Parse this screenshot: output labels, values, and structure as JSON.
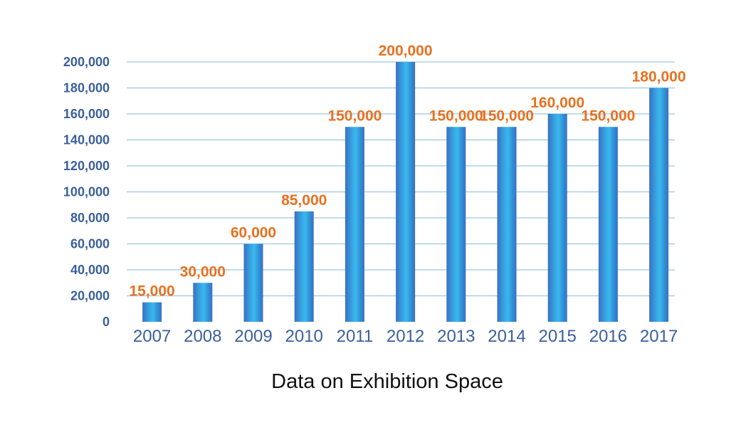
{
  "chart_data": {
    "type": "bar",
    "title": "Data on Exhibition Space",
    "xlabel": "",
    "ylabel": "",
    "categories": [
      "2007",
      "2008",
      "2009",
      "2010",
      "2011",
      "2012",
      "2013",
      "2014",
      "2015",
      "2016",
      "2017"
    ],
    "values": [
      15000,
      30000,
      60000,
      85000,
      150000,
      200000,
      150000,
      150000,
      160000,
      150000,
      180000
    ],
    "value_labels": [
      "15,000",
      "30,000",
      "60,000",
      "85,000",
      "150,000",
      "200,000",
      "150,000",
      "150,000",
      "160,000",
      "150,000",
      "180,000"
    ],
    "ylim": [
      0,
      200000
    ],
    "yticks": [
      0,
      20000,
      40000,
      60000,
      80000,
      100000,
      120000,
      140000,
      160000,
      180000,
      200000
    ],
    "ytick_labels": [
      "0",
      "20,000",
      "40,000",
      "60,000",
      "80,000",
      "100,000",
      "120,000",
      "140,000",
      "160,000",
      "180,000",
      "200,000"
    ],
    "grid": true,
    "legend": "none",
    "colors": {
      "bar_edge": "#3d6fc0",
      "bar_center": "#3bb8ec",
      "data_label": "#e8711f",
      "axis_label": "#3a5f9e",
      "grid": "#9cc6de"
    }
  }
}
